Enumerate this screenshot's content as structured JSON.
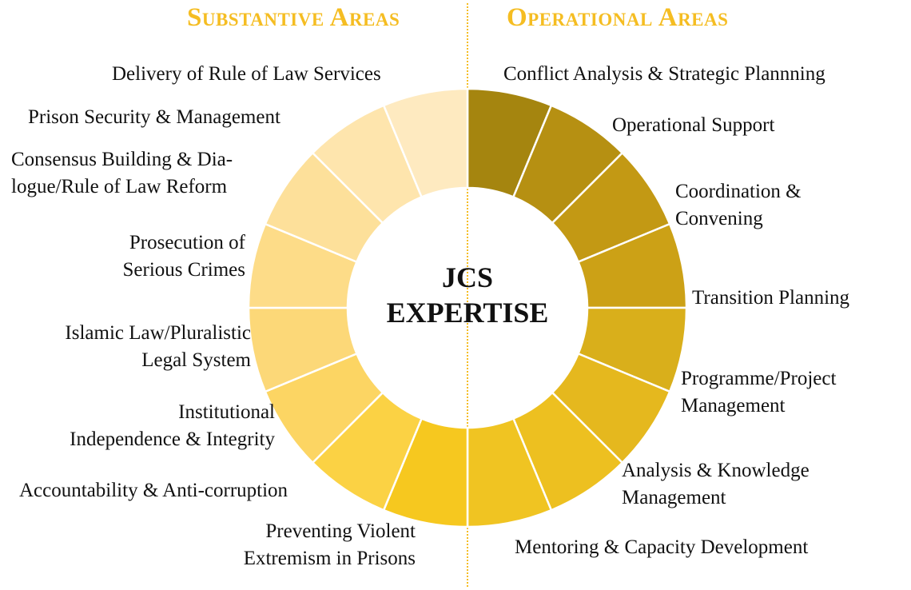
{
  "headers": {
    "substantive": "Substantive Areas",
    "operational": "Operational Areas"
  },
  "center": {
    "line1": "JCS",
    "line2": "EXPERTISE"
  },
  "operational": [
    {
      "label": "Conflict Analysis & Strategic Plannning",
      "color": "#A5850F"
    },
    {
      "label": "Operational Support",
      "color": "#B69012"
    },
    {
      "label": "Coordination &\nConvening",
      "color": "#C39914"
    },
    {
      "label": "Transition Planning",
      "color": "#CCA116"
    },
    {
      "label": "Programme/Project\nManagement",
      "color": "#D9AF1B"
    },
    {
      "label": "Analysis & Knowledge\nManagement",
      "color": "#E5B81E"
    },
    {
      "label": "Mentoring & Capacity Development",
      "color": "#EDC020"
    }
  ],
  "substantive": [
    {
      "label": "Preventing Violent\nExtremism in Prisons",
      "color": "#F6C81F"
    },
    {
      "label": "Accountability & Anti-corruption",
      "color": "#FBD244"
    },
    {
      "label": "Institutional\nIndependence & Integrity",
      "color": "#FCD563"
    },
    {
      "label": "Islamic Law/Pluralistic\nLegal System",
      "color": "#FCD878"
    },
    {
      "label": "Prosecution of\nSerious Crimes",
      "color": "#FDDC88"
    },
    {
      "label": "Consensus Building & Dia-\nlogue/Rule of Law Reform",
      "color": "#FDE09A"
    },
    {
      "label": "Prison Security & Management",
      "color": "#FEE5AD"
    },
    {
      "label": "Delivery of Rule of Law Services",
      "color": "#FEEAC0"
    }
  ],
  "extra_segment_color": "#F0C422"
}
